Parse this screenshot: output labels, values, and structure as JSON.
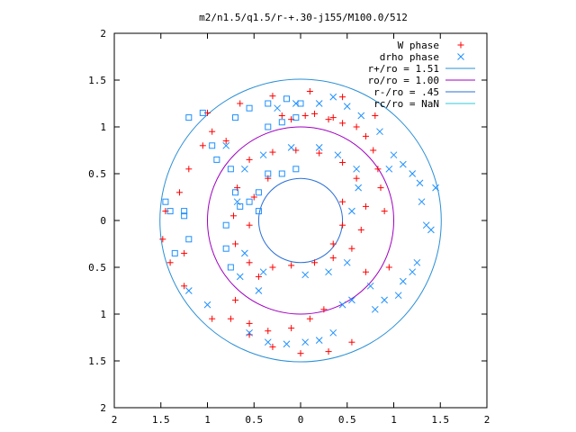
{
  "chart_data": {
    "type": "scatter",
    "title": "m2/n1.5/q1.5/r-+.30-j155/M100.0/512",
    "xlim": [
      -2,
      2
    ],
    "ylim": [
      -2,
      2
    ],
    "x_ticks": [
      -2,
      -1.5,
      -1,
      -0.5,
      0,
      0.5,
      1,
      1.5,
      2
    ],
    "x_tick_labels": [
      "2",
      "1.5",
      "1",
      "0.5",
      "0",
      "0.5",
      "1",
      "1.5",
      "2"
    ],
    "y_ticks": [
      2,
      1.5,
      1,
      0.5,
      0,
      -0.5,
      -1,
      -1.5,
      -2
    ],
    "y_tick_labels": [
      "2",
      "1.5",
      "1",
      "0.5",
      "0",
      "0.5",
      "1",
      "1.5",
      "2"
    ],
    "grid": false,
    "legend_position": "top-right",
    "point_series": [
      {
        "name": "W phase",
        "marker": "+",
        "color": "#ff0000",
        "points": [
          [
            -0.2,
            1.12
          ],
          [
            -0.1,
            1.08
          ],
          [
            0.05,
            1.12
          ],
          [
            0.15,
            1.14
          ],
          [
            0.3,
            1.08
          ],
          [
            0.45,
            1.04
          ],
          [
            0.6,
            1.0
          ],
          [
            0.7,
            0.9
          ],
          [
            0.78,
            0.75
          ],
          [
            0.83,
            0.55
          ],
          [
            0.86,
            0.35
          ],
          [
            0.9,
            0.1
          ],
          [
            -0.95,
            0.95
          ],
          [
            -1.05,
            0.8
          ],
          [
            -1.2,
            0.55
          ],
          [
            -1.3,
            0.3
          ],
          [
            -1.45,
            0.1
          ],
          [
            -1.48,
            -0.2
          ],
          [
            -1.4,
            -0.45
          ],
          [
            -1.25,
            -0.7
          ],
          [
            -0.95,
            -1.05
          ],
          [
            -0.75,
            -1.05
          ],
          [
            -0.55,
            -1.1
          ],
          [
            -0.35,
            -1.18
          ],
          [
            -0.1,
            -1.15
          ],
          [
            0.1,
            -1.05
          ],
          [
            0.25,
            -0.95
          ],
          [
            0.55,
            -1.3
          ],
          [
            0.3,
            -1.4
          ],
          [
            0.0,
            -1.42
          ],
          [
            -0.3,
            -1.35
          ],
          [
            -0.55,
            -1.22
          ],
          [
            -0.45,
            -0.6
          ],
          [
            -0.3,
            -0.5
          ],
          [
            -0.1,
            -0.48
          ],
          [
            0.15,
            -0.45
          ],
          [
            0.35,
            -0.4
          ],
          [
            0.55,
            -0.3
          ],
          [
            0.65,
            -0.1
          ],
          [
            0.7,
            0.15
          ],
          [
            0.6,
            0.45
          ],
          [
            0.45,
            0.62
          ],
          [
            0.2,
            0.72
          ],
          [
            -0.05,
            0.75
          ],
          [
            -0.3,
            0.73
          ],
          [
            -0.55,
            0.65
          ],
          [
            -0.68,
            0.35
          ],
          [
            -0.72,
            0.05
          ],
          [
            -0.7,
            -0.25
          ],
          [
            -0.55,
            -0.45
          ],
          [
            -0.35,
            0.45
          ],
          [
            -0.5,
            0.25
          ],
          [
            -0.55,
            -0.05
          ],
          [
            0.45,
            0.2
          ],
          [
            0.45,
            -0.05
          ],
          [
            0.35,
            -0.25
          ],
          [
            -1.0,
            1.15
          ],
          [
            -0.65,
            1.25
          ],
          [
            -0.3,
            1.33
          ],
          [
            0.1,
            1.38
          ],
          [
            0.45,
            1.32
          ],
          [
            0.8,
            1.12
          ],
          [
            -1.25,
            -0.35
          ],
          [
            -0.7,
            -0.85
          ],
          [
            0.95,
            -0.5
          ],
          [
            0.35,
            1.1
          ],
          [
            -0.8,
            0.85
          ],
          [
            0.7,
            -0.55
          ]
        ]
      },
      {
        "name": "drho phase",
        "marker": "x",
        "color": "#1e90ff",
        "points": [
          [
            -0.25,
            1.2
          ],
          [
            -0.05,
            1.25
          ],
          [
            0.2,
            1.25
          ],
          [
            0.35,
            1.32
          ],
          [
            0.5,
            1.22
          ],
          [
            0.65,
            1.12
          ],
          [
            0.85,
            0.95
          ],
          [
            1.0,
            0.7
          ],
          [
            1.1,
            0.6
          ],
          [
            1.2,
            0.5
          ],
          [
            1.28,
            0.4
          ],
          [
            1.3,
            0.2
          ],
          [
            1.35,
            -0.05
          ],
          [
            1.25,
            -0.45
          ],
          [
            1.1,
            -0.65
          ],
          [
            1.05,
            -0.8
          ],
          [
            0.9,
            -0.85
          ],
          [
            0.8,
            -0.95
          ],
          [
            0.55,
            -0.85
          ],
          [
            0.45,
            -0.9
          ],
          [
            0.35,
            -1.2
          ],
          [
            0.2,
            -1.28
          ],
          [
            0.05,
            -1.3
          ],
          [
            -0.15,
            -1.32
          ],
          [
            -0.35,
            -1.3
          ],
          [
            -0.55,
            -1.2
          ],
          [
            -0.65,
            -0.6
          ],
          [
            -0.45,
            -0.75
          ],
          [
            0.05,
            -0.58
          ],
          [
            0.3,
            -0.55
          ],
          [
            0.5,
            -0.45
          ],
          [
            0.55,
            0.1
          ],
          [
            0.62,
            0.35
          ],
          [
            0.6,
            0.55
          ],
          [
            0.4,
            0.7
          ],
          [
            0.2,
            0.78
          ],
          [
            -0.1,
            0.78
          ],
          [
            -0.4,
            0.7
          ],
          [
            -0.6,
            0.55
          ],
          [
            -0.68,
            0.2
          ],
          [
            -0.6,
            -0.35
          ],
          [
            -0.4,
            -0.55
          ],
          [
            1.45,
            0.35
          ],
          [
            1.4,
            -0.1
          ],
          [
            -1.2,
            -0.75
          ],
          [
            0.95,
            0.55
          ],
          [
            1.2,
            -0.55
          ],
          [
            -0.8,
            0.8
          ],
          [
            -1.0,
            -0.9
          ],
          [
            0.75,
            -0.7
          ]
        ]
      },
      {
        "name": "",
        "marker": "square",
        "color": "#1e90ff",
        "points": [
          [
            -1.4,
            0.1
          ],
          [
            -1.45,
            0.2
          ],
          [
            -1.25,
            0.1
          ],
          [
            -1.25,
            0.05
          ],
          [
            -1.2,
            -0.2
          ],
          [
            -1.35,
            -0.35
          ],
          [
            -1.2,
            1.1
          ],
          [
            -1.05,
            1.15
          ],
          [
            -0.7,
            1.1
          ],
          [
            -0.55,
            1.2
          ],
          [
            -0.35,
            1.25
          ],
          [
            -0.15,
            1.3
          ],
          [
            0.0,
            1.25
          ],
          [
            -0.05,
            1.1
          ],
          [
            -0.2,
            1.05
          ],
          [
            -0.35,
            1.0
          ],
          [
            -0.95,
            0.8
          ],
          [
            -0.9,
            0.65
          ],
          [
            -0.75,
            0.55
          ],
          [
            -0.7,
            0.3
          ],
          [
            -0.65,
            0.15
          ],
          [
            -0.55,
            0.2
          ],
          [
            -0.45,
            0.3
          ],
          [
            -0.35,
            0.5
          ],
          [
            -0.2,
            0.5
          ],
          [
            -0.05,
            0.55
          ],
          [
            -0.8,
            -0.05
          ],
          [
            -0.8,
            -0.3
          ],
          [
            -0.75,
            -0.5
          ],
          [
            -0.45,
            0.1
          ]
        ]
      }
    ],
    "circles": [
      {
        "name": "r+/ro = 1.51",
        "radius": 1.51,
        "color": "#2a8fd6"
      },
      {
        "name": "ro/ro = 1.00",
        "radius": 1.0,
        "color": "#a000c0"
      },
      {
        "name": "r-/ro = .45",
        "radius": 0.45,
        "color": "#2a6fd6"
      },
      {
        "name": "rc/ro = NaN",
        "radius": null,
        "color": "#30c8d8"
      }
    ]
  }
}
